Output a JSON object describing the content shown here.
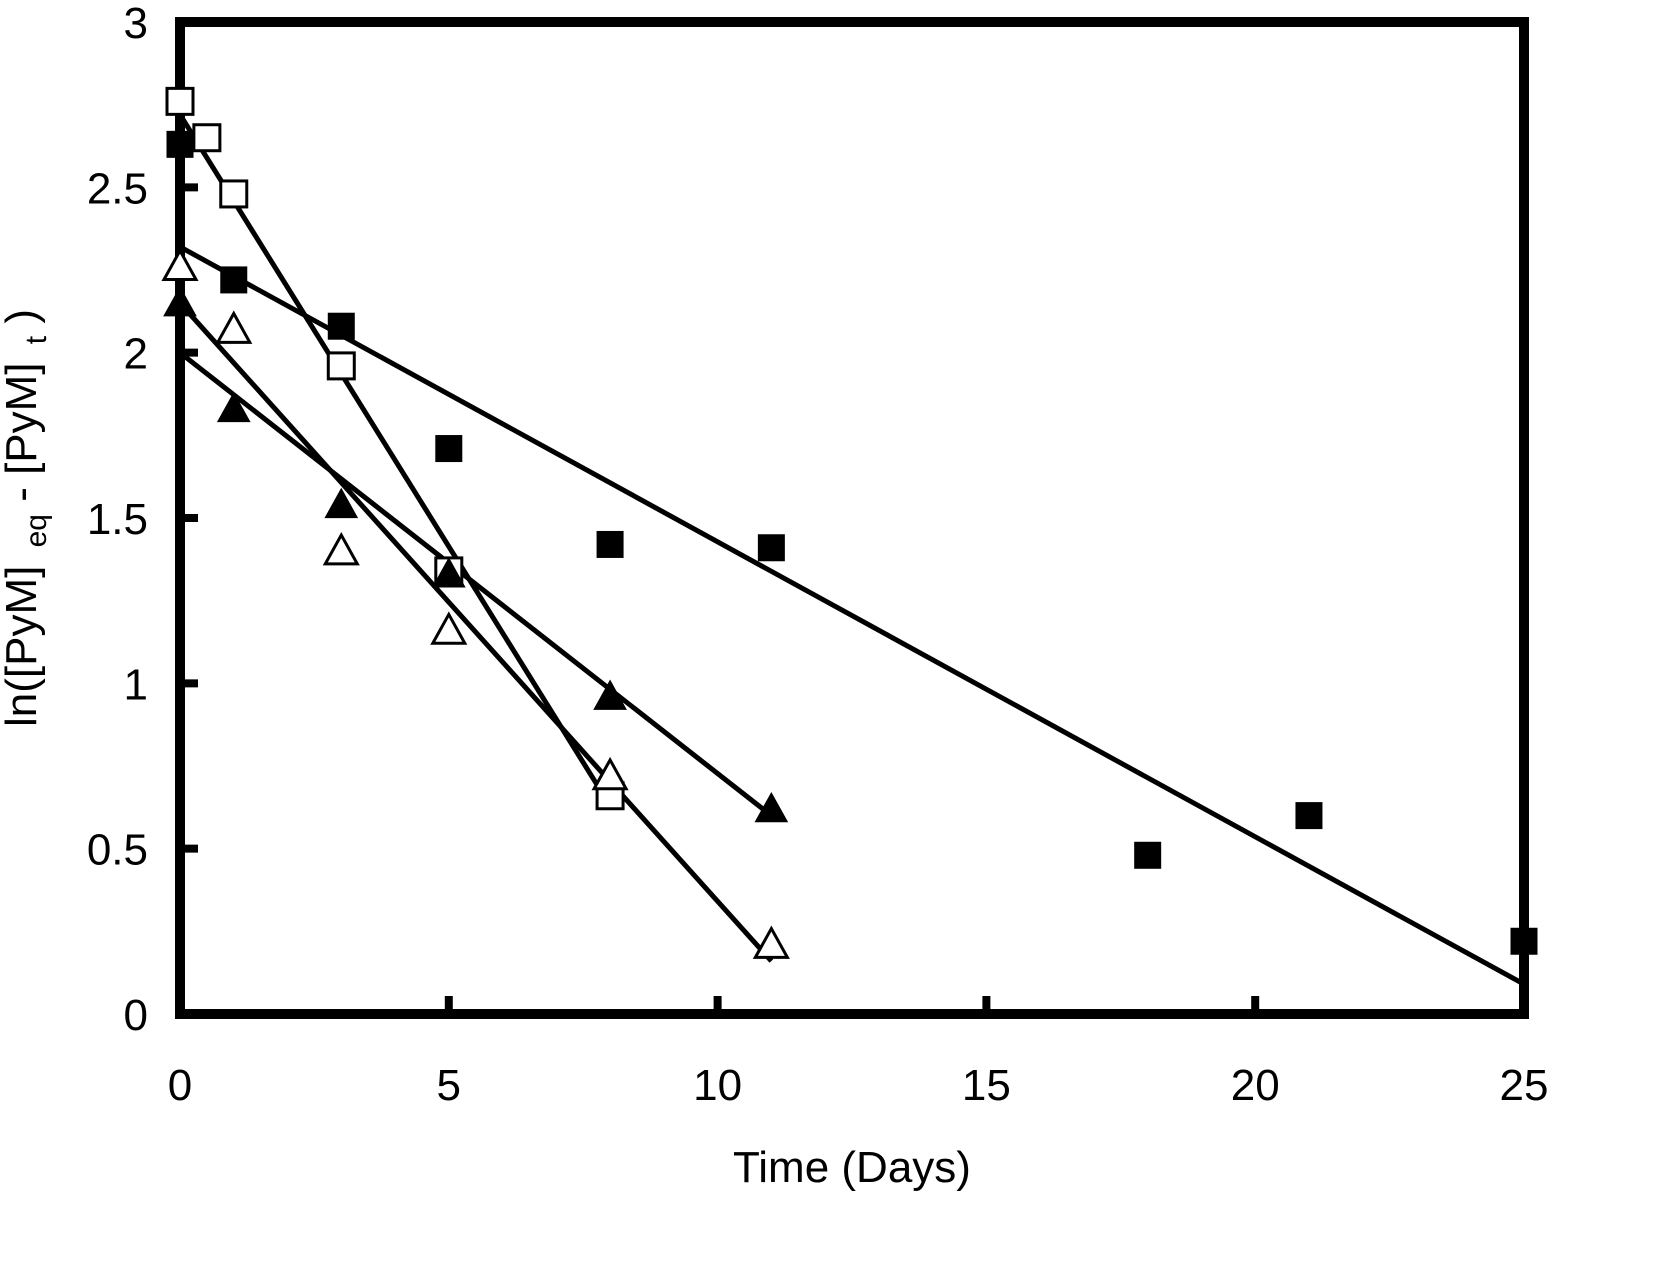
{
  "chart_data": {
    "type": "scatter",
    "title": "",
    "xlabel": "Time (Days)",
    "ylabel": {
      "prefix": "ln([PyM]",
      "sub1": "eq",
      "middle": " - [PyM]",
      "sub2": "t",
      "suffix": ")"
    },
    "xlim": [
      0,
      25
    ],
    "ylim": [
      0,
      3
    ],
    "xticks": [
      0,
      5,
      10,
      15,
      20,
      25
    ],
    "yticks": [
      0,
      0.5,
      1,
      1.5,
      2,
      2.5,
      3
    ],
    "xtick_labels": [
      "0",
      "5",
      "10",
      "15",
      "20",
      "25"
    ],
    "ytick_labels": [
      "0",
      "0.5",
      "1",
      "1.5",
      "2",
      "2.5",
      "3"
    ],
    "grid": false,
    "legend": "none",
    "series": [
      {
        "name": "filled-square",
        "marker": "square",
        "filled": true,
        "x": [
          0,
          1,
          3,
          5,
          8,
          11,
          18,
          21,
          25
        ],
        "y": [
          2.63,
          2.22,
          2.08,
          1.71,
          1.42,
          1.41,
          0.48,
          0.6,
          0.22
        ],
        "fit": {
          "x": [
            0,
            25
          ],
          "y": [
            2.32,
            0.09
          ]
        }
      },
      {
        "name": "open-square",
        "marker": "square",
        "filled": false,
        "x": [
          0,
          0.5,
          1,
          3,
          5,
          8
        ],
        "y": [
          2.76,
          2.65,
          2.48,
          1.96,
          1.34,
          0.66
        ],
        "fit": {
          "x": [
            0,
            8
          ],
          "y": [
            2.72,
            0.63
          ]
        }
      },
      {
        "name": "filled-triangle",
        "marker": "triangle",
        "filled": true,
        "x": [
          0,
          1,
          3,
          5,
          8,
          11
        ],
        "y": [
          2.15,
          1.83,
          1.54,
          1.33,
          0.96,
          0.62
        ],
        "fit": {
          "x": [
            0,
            11
          ],
          "y": [
            2.0,
            0.6
          ]
        }
      },
      {
        "name": "open-triangle",
        "marker": "triangle",
        "filled": false,
        "x": [
          0,
          1,
          3,
          5,
          8,
          11
        ],
        "y": [
          2.26,
          2.07,
          1.4,
          1.16,
          0.72,
          0.21
        ],
        "fit": {
          "x": [
            0,
            11
          ],
          "y": [
            2.15,
            0.16
          ]
        }
      }
    ]
  }
}
